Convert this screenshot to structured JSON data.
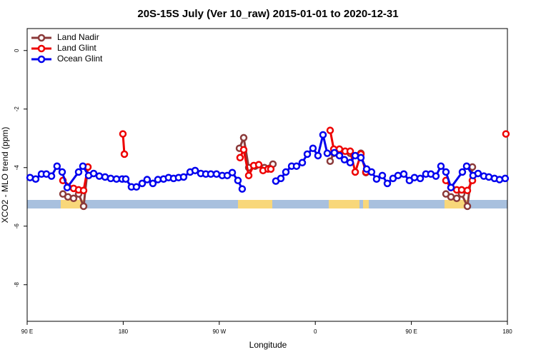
{
  "chart_data": {
    "type": "line",
    "title": "20S-15S July (Ver 10_raw)   2015-01-01 to 2020-12-31",
    "xlabel": "Longitude",
    "ylabel": "XCO2 - MLO trend (ppm)",
    "xlim": [
      90,
      540
    ],
    "xticks": [
      {
        "value": 90,
        "label": "90 E"
      },
      180,
      {
        "value": 270,
        "label": "90 W"
      },
      {
        "value": 360,
        "label": "0"
      },
      {
        "value": 450,
        "label": "90 E"
      },
      {
        "value": 540,
        "label": "180"
      }
    ],
    "ylim": [
      -9.25,
      0.75
    ],
    "yticks": [
      0,
      -2,
      -4,
      -6,
      -8
    ],
    "legend": "upper left",
    "series": [
      {
        "name": "Land Nadir",
        "color": "#8b3a3a",
        "x": [
          123.5,
          128.2,
          133.5,
          138.2,
          142.9,
          146.9,
          null,
          288.9,
          292.9,
          297.6,
          303.6,
          312.3,
          320.3,
          null,
          373.9,
          377.3,
          382.6,
          392.7,
          402.7,
          407.4,
          null,
          482.4,
          487.1,
          492.5,
          497.1,
          502.5,
          507.2
        ],
        "values": [
          -4.9,
          -5.0,
          -5.05,
          -4.9,
          -5.32,
          -3.98,
          null,
          -3.34,
          -2.98,
          -4.0,
          -3.95,
          -4.0,
          -3.88,
          null,
          -3.78,
          -3.51,
          -3.51,
          -3.51,
          -3.51,
          -4.17,
          null,
          -4.9,
          -5.0,
          -5.05,
          -4.9,
          -5.32,
          -3.98
        ]
      },
      {
        "name": "Land Glint",
        "color": "#ee0000",
        "x": [
          123.5,
          133.5,
          138.2,
          142.9,
          146.9,
          null,
          179.7,
          181.1,
          null,
          289.5,
          292.9,
          297.6,
          302.3,
          307,
          311,
          315.7,
          318.3,
          null,
          373.9,
          377.3,
          382.6,
          388,
          392.7,
          397.4,
          402.7,
          407.4,
          null,
          482.4,
          487.1,
          492.5,
          497.1,
          502.5,
          507.2,
          null,
          538.6
        ],
        "values": [
          -4.44,
          -4.71,
          -4.76,
          -4.78,
          -3.98,
          null,
          -2.85,
          -3.54,
          null,
          -3.66,
          -3.39,
          -4.27,
          -3.93,
          -3.9,
          -4.1,
          -4.05,
          -4.05,
          null,
          -2.73,
          -3.37,
          -3.37,
          -3.44,
          -3.44,
          -4.15,
          -3.54,
          -4.15,
          null,
          -4.44,
          -4.68,
          -4.76,
          -4.76,
          -4.78,
          -4.44,
          null,
          -2.85
        ]
      },
      {
        "name": "Ocean Glint",
        "color": "#0000ee",
        "x": [
          92.7,
          98,
          103.4,
          108,
          112.8,
          118,
          122.8,
          127.5,
          138.2,
          142.2,
          147.6,
          152.3,
          157.6,
          163,
          168.3,
          173.7,
          179,
          182.4,
          187.7,
          192.4,
          197.8,
          202.4,
          207.8,
          212.5,
          217.8,
          222.5,
          227.2,
          231.9,
          236.6,
          242.7,
          247.4,
          252.7,
          257.4,
          262.1,
          267.4,
          272.8,
          277.5,
          282.2,
          287.5,
          291.5,
          null,
          323,
          327.7,
          332.4,
          337.8,
          342.4,
          347.8,
          352.5,
          357.8,
          362.5,
          367.2,
          371.2,
          377.9,
          382.6,
          387.3,
          392.7,
          397.4,
          402.7,
          408.1,
          412.7,
          417.4,
          422.8,
          427.5,
          432.8,
          437.5,
          442.9,
          448.2,
          452.9,
          458.3,
          463.6,
          468.3,
          473,
          477.7,
          482.4,
          487.1,
          497.8,
          501.8,
          507.8,
          512.5,
          517.9,
          522.6,
          527.9,
          532.6,
          537.9
        ],
        "values": [
          -4.34,
          -4.39,
          -4.22,
          -4.22,
          -4.29,
          -3.95,
          -4.15,
          -4.68,
          -4.15,
          -3.95,
          -4.27,
          -4.2,
          -4.29,
          -4.32,
          -4.37,
          -4.39,
          -4.39,
          -4.39,
          -4.66,
          -4.66,
          -4.54,
          -4.41,
          -4.54,
          -4.41,
          -4.39,
          -4.34,
          -4.37,
          -4.34,
          -4.32,
          -4.15,
          -4.1,
          -4.2,
          -4.22,
          -4.22,
          -4.22,
          -4.27,
          -4.27,
          -4.17,
          -4.44,
          -4.73,
          null,
          -4.46,
          -4.37,
          -4.15,
          -3.95,
          -3.95,
          -3.83,
          -3.54,
          -3.34,
          -3.59,
          -2.88,
          -3.51,
          -3.49,
          -3.59,
          -3.73,
          -3.83,
          -3.59,
          -3.66,
          -4.05,
          -4.15,
          -4.39,
          -4.27,
          -4.54,
          -4.37,
          -4.27,
          -4.22,
          -4.44,
          -4.34,
          -4.37,
          -4.22,
          -4.22,
          -4.29,
          -3.95,
          -4.15,
          -4.68,
          -4.15,
          -3.95,
          -4.27,
          -4.2,
          -4.29,
          -4.32,
          -4.37,
          -4.41,
          -4.37
        ]
      }
    ]
  }
}
